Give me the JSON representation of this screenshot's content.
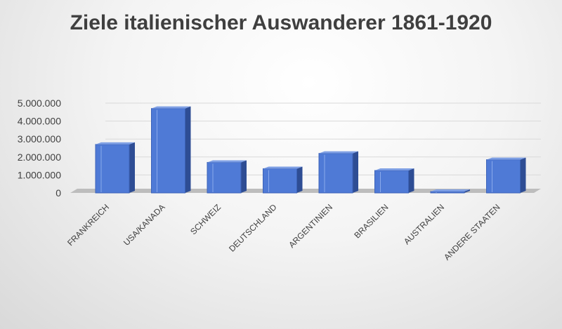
{
  "chart_data": {
    "type": "bar",
    "title": "Ziele italienischer Auswanderer 1861-1920",
    "categories": [
      "FRANKREICH",
      "USA/KANADA",
      "SCHWEIZ",
      "DEUTSCHLAND",
      "ARGENTINIEN",
      "BRASILIEN",
      "AUSTRALIEN",
      "ANDERE STAATEN"
    ],
    "values": [
      2700000,
      4700000,
      1700000,
      1350000,
      2200000,
      1250000,
      50000,
      1850000
    ],
    "ylim": [
      0,
      5000000
    ],
    "yticks": [
      0,
      1000000,
      2000000,
      3000000,
      4000000,
      5000000
    ],
    "ytick_labels": [
      "0",
      "1.000.000",
      "2.000.000",
      "3.000.000",
      "4.000.000",
      "5.000.000"
    ],
    "xlabel": "",
    "ylabel": "",
    "grid": true,
    "style": "3d-column",
    "colors": {
      "bar": "#4f7ad6",
      "bar_side": "#2e4d94",
      "bar_top": "#7e9fe4",
      "floor": "#bdbdbd",
      "grid": "#d9d9d9"
    }
  }
}
